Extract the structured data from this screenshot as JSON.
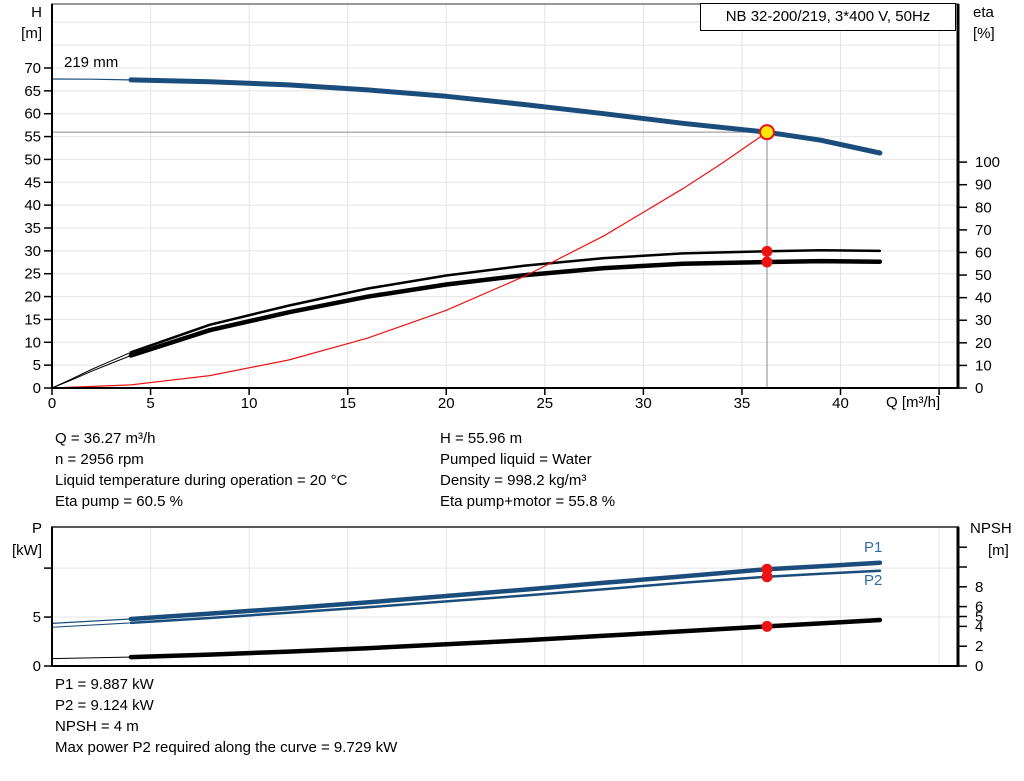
{
  "colors": {
    "blue": "#1b4d7c",
    "blue_label": "#2e6da4",
    "red": "#ec1313",
    "yellow": "#ffe60a",
    "black": "#000000",
    "gray": "#8a8a8a",
    "grid": "#e4e4e4"
  },
  "info_top": {
    "left": [
      "Q = 36.27 m³/h",
      "n = 2956 rpm",
      "Liquid temperature during operation = 20 °C",
      "Eta pump = 60.5 %"
    ],
    "right": [
      "H = 55.96 m",
      "Pumped liquid = Water",
      "Density = 998.2 kg/m³",
      "Eta pump+motor = 55.8 %"
    ]
  },
  "info_bottom": [
    "P1 = 9.887 kW",
    "P2 = 9.124 kW",
    "NPSH = 4 m",
    "Max power P2 required along the curve = 9.729 kW"
  ],
  "chart_data": [
    {
      "name": "qh-eta-chart",
      "type": "line",
      "title": "NB 32-200/219, 3*400 V, 50Hz",
      "xlabel": "Q [m³/h]",
      "x_range": [
        0,
        45.96
      ],
      "x_ticks": [
        0,
        5,
        10,
        15,
        20,
        25,
        30,
        35,
        40
      ],
      "x_minor": [
        45
      ],
      "x_grid": [
        5,
        10,
        15,
        20,
        25,
        30,
        35,
        40,
        45
      ],
      "x_labels": true,
      "primary": "H",
      "axes": {
        "H": {
          "side": "left",
          "label": [
            "H",
            "[m]"
          ],
          "range": [
            0,
            84
          ],
          "ticks": [
            0,
            5,
            10,
            15,
            20,
            25,
            30,
            35,
            40,
            45,
            50,
            55,
            60,
            65,
            70
          ],
          "grid": [
            5,
            10,
            15,
            20,
            25,
            30,
            35,
            40,
            45,
            50,
            55,
            60,
            65,
            70,
            75,
            80
          ]
        },
        "eta": {
          "side": "right",
          "label": [
            "eta",
            "[%]"
          ],
          "range": [
            0,
            170
          ],
          "ticks": [
            0,
            10,
            20,
            30,
            40,
            50,
            60,
            70,
            80,
            90,
            100
          ]
        }
      },
      "curve_label": {
        "text": "219 mm"
      },
      "series": [
        {
          "name": "head-219mm",
          "axis": "H",
          "color": "blue",
          "w": 5,
          "thin_w": 1.2,
          "thin": [
            [
              0,
              67.6
            ],
            [
              2,
              67.55
            ],
            [
              4,
              67.4
            ]
          ],
          "thick": [
            [
              4,
              67.4
            ],
            [
              8,
              67.0
            ],
            [
              12,
              66.3
            ],
            [
              16,
              65.2
            ],
            [
              20,
              63.8
            ],
            [
              24,
              62.0
            ],
            [
              28,
              60.0
            ],
            [
              32,
              57.9
            ],
            [
              36.27,
              55.96
            ],
            [
              39,
              54.2
            ],
            [
              42,
              51.4
            ]
          ]
        },
        {
          "name": "eta-pump",
          "axis": "eta",
          "color": "black",
          "w": 2.5,
          "thin_w": 1,
          "thin": [
            [
              0,
              0
            ],
            [
              1,
              4
            ],
            [
              2,
              8.2
            ],
            [
              3,
              12
            ],
            [
              4,
              15.8
            ]
          ],
          "thick": [
            [
              4,
              15.8
            ],
            [
              8,
              28
            ],
            [
              12,
              36.5
            ],
            [
              16,
              44
            ],
            [
              20,
              49.8
            ],
            [
              24,
              54.2
            ],
            [
              28,
              57.5
            ],
            [
              32,
              59.6
            ],
            [
              36.27,
              60.5
            ],
            [
              39,
              61
            ],
            [
              42,
              60.7
            ]
          ]
        },
        {
          "name": "eta-pump-motor",
          "axis": "eta",
          "color": "black",
          "w": 4.5,
          "thin_w": 1,
          "thin": [
            [
              0,
              0
            ],
            [
              1,
              3.6
            ],
            [
              2,
              7.4
            ],
            [
              3,
              10.9
            ],
            [
              4,
              14.4
            ]
          ],
          "thick": [
            [
              4,
              14.4
            ],
            [
              8,
              25.6
            ],
            [
              12,
              33.5
            ],
            [
              16,
              40.4
            ],
            [
              20,
              45.8
            ],
            [
              24,
              50.0
            ],
            [
              28,
              53.1
            ],
            [
              32,
              55.0
            ],
            [
              36.27,
              55.8
            ],
            [
              39,
              56.2
            ],
            [
              42,
              55.9
            ]
          ]
        },
        {
          "name": "system-curve",
          "axis": "H",
          "color": "red",
          "w": 1.2,
          "thin_w": 1.2,
          "thin": [
            [
              0,
              0
            ],
            [
              4,
              0.68
            ],
            [
              8,
              2.72
            ],
            [
              12,
              6.13
            ],
            [
              16,
              10.9
            ],
            [
              20,
              17.0
            ],
            [
              24,
              24.5
            ],
            [
              28,
              33.3
            ],
            [
              32,
              43.6
            ],
            [
              34,
              49.2
            ],
            [
              36.27,
              55.96
            ]
          ],
          "thick": []
        }
      ],
      "duty": {
        "Q": 36.27,
        "crosshair": true,
        "markers": [
          {
            "axis": "H",
            "value": 55.96,
            "style": "yellow"
          },
          {
            "axis": "eta",
            "value": 60.5,
            "style": "red"
          },
          {
            "axis": "eta",
            "value": 55.8,
            "style": "red"
          }
        ]
      }
    },
    {
      "name": "power-npsh-chart",
      "type": "line",
      "x_range": [
        0,
        45.96
      ],
      "x_ticks": [],
      "x_minor": [],
      "x_grid": [
        5,
        10,
        15,
        20,
        25,
        30,
        35,
        40,
        45
      ],
      "x_labels": false,
      "primary": "P",
      "axes": {
        "P": {
          "side": "left",
          "label": [
            "P",
            "[kW]"
          ],
          "range": [
            0,
            14.2
          ],
          "ticks": [
            0,
            5
          ],
          "minor": [
            10
          ],
          "grid": [
            5,
            10
          ]
        },
        "NPSH": {
          "side": "right",
          "label": [
            "NPSH",
            "[m]"
          ],
          "range": [
            0,
            14.04
          ],
          "ticks": [
            0,
            2,
            4,
            5,
            6,
            8
          ],
          "minor": [
            10,
            12
          ]
        }
      },
      "series": [
        {
          "name": "p1",
          "label": "P1",
          "axis": "P",
          "color": "blue",
          "w": 4.5,
          "thin_w": 1.2,
          "thin": [
            [
              0,
              4.35
            ],
            [
              4,
              4.8
            ]
          ],
          "thick": [
            [
              4,
              4.8
            ],
            [
              8,
              5.35
            ],
            [
              12,
              5.9
            ],
            [
              16,
              6.5
            ],
            [
              20,
              7.15
            ],
            [
              24,
              7.8
            ],
            [
              28,
              8.5
            ],
            [
              32,
              9.15
            ],
            [
              36.27,
              9.887
            ],
            [
              39,
              10.2
            ],
            [
              42,
              10.55
            ]
          ]
        },
        {
          "name": "p2",
          "label": "P2",
          "axis": "P",
          "color": "blue",
          "w": 2.5,
          "thin_w": 1,
          "thin": [
            [
              0,
              3.95
            ],
            [
              4,
              4.4
            ]
          ],
          "thick": [
            [
              4,
              4.4
            ],
            [
              8,
              4.9
            ],
            [
              12,
              5.45
            ],
            [
              16,
              6.0
            ],
            [
              20,
              6.6
            ],
            [
              24,
              7.2
            ],
            [
              28,
              7.85
            ],
            [
              32,
              8.5
            ],
            [
              36.27,
              9.124
            ],
            [
              39,
              9.43
            ],
            [
              42,
              9.729
            ]
          ]
        },
        {
          "name": "npsh",
          "axis": "NPSH",
          "color": "black",
          "w": 4.5,
          "thin_w": 1,
          "thin": [
            [
              0,
              0.75
            ],
            [
              4,
              0.9
            ]
          ],
          "thick": [
            [
              4,
              0.9
            ],
            [
              8,
              1.15
            ],
            [
              12,
              1.45
            ],
            [
              16,
              1.8
            ],
            [
              20,
              2.2
            ],
            [
              24,
              2.6
            ],
            [
              28,
              3.05
            ],
            [
              32,
              3.5
            ],
            [
              36.27,
              4.0
            ],
            [
              39,
              4.3
            ],
            [
              42,
              4.65
            ]
          ]
        }
      ],
      "duty": {
        "Q": 36.27,
        "crosshair": false,
        "markers": [
          {
            "axis": "P",
            "value": 9.887,
            "style": "red"
          },
          {
            "axis": "P",
            "value": 9.124,
            "style": "red"
          },
          {
            "axis": "NPSH",
            "value": 4.0,
            "style": "red"
          }
        ]
      }
    }
  ]
}
